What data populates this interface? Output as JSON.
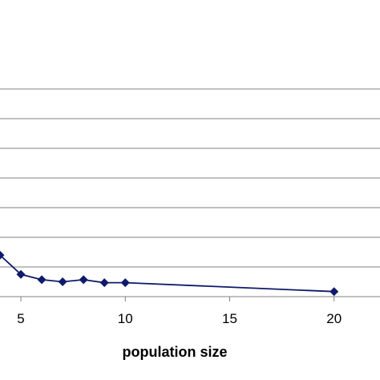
{
  "chart_data": {
    "type": "line",
    "title": "",
    "xlabel": "population size",
    "ylabel": "",
    "xlim": [
      4,
      22.2
    ],
    "ylim": [
      0,
      10
    ],
    "x_ticks": [
      5,
      10,
      15,
      20
    ],
    "y_gridlines": [
      1,
      2,
      3,
      4,
      5,
      6,
      7
    ],
    "grid": true,
    "legend": "none",
    "series": [
      {
        "marker": "diamond",
        "color": "#0f1a6b",
        "points": [
          {
            "x": 4,
            "y": 1.4
          },
          {
            "x": 5,
            "y": 0.75
          },
          {
            "x": 6,
            "y": 0.57
          },
          {
            "x": 7,
            "y": 0.5
          },
          {
            "x": 8,
            "y": 0.57
          },
          {
            "x": 9,
            "y": 0.47
          },
          {
            "x": 10,
            "y": 0.47
          },
          {
            "x": 20,
            "y": 0.17
          }
        ]
      }
    ]
  }
}
